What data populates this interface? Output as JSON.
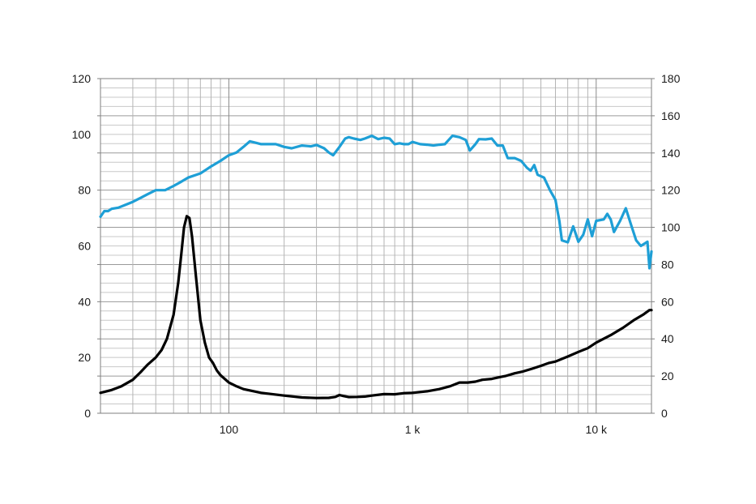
{
  "chart_data": {
    "type": "line",
    "x_scale": "log",
    "xlim": [
      20,
      20000
    ],
    "ylim_left": [
      0,
      120
    ],
    "ylim_right": [
      0,
      180
    ],
    "grid": true,
    "legend": "none",
    "x_tick_labels": [
      {
        "value": 100,
        "label": "100"
      },
      {
        "value": 1000,
        "label": "1 k"
      },
      {
        "value": 10000,
        "label": "10 k"
      }
    ],
    "y_left_ticks": [
      0,
      20,
      40,
      60,
      80,
      100,
      120
    ],
    "y_right_ticks": [
      0,
      20,
      40,
      60,
      80,
      100,
      120,
      140,
      160,
      180
    ],
    "series": [
      {
        "axis": "left",
        "color": "#1e9fd6",
        "points": [
          [
            20,
            70.5
          ],
          [
            21,
            72.5
          ],
          [
            22,
            72.5
          ],
          [
            23,
            73.3
          ],
          [
            25,
            73.7
          ],
          [
            28,
            75
          ],
          [
            30,
            75.8
          ],
          [
            33,
            77.2
          ],
          [
            36,
            78.5
          ],
          [
            40,
            80
          ],
          [
            45,
            80
          ],
          [
            50,
            81.5
          ],
          [
            55,
            83
          ],
          [
            60,
            84.5
          ],
          [
            70,
            86
          ],
          [
            80,
            88.5
          ],
          [
            90,
            90.5
          ],
          [
            100,
            92.5
          ],
          [
            110,
            93.5
          ],
          [
            120,
            95.5
          ],
          [
            130,
            97.5
          ],
          [
            140,
            97
          ],
          [
            150,
            96.5
          ],
          [
            180,
            96.5
          ],
          [
            200,
            95.5
          ],
          [
            220,
            95
          ],
          [
            250,
            96
          ],
          [
            280,
            95.7
          ],
          [
            300,
            96.2
          ],
          [
            330,
            95
          ],
          [
            350,
            93.5
          ],
          [
            370,
            92.5
          ],
          [
            400,
            95.5
          ],
          [
            430,
            98.5
          ],
          [
            450,
            99
          ],
          [
            480,
            98.5
          ],
          [
            520,
            98
          ],
          [
            550,
            98.5
          ],
          [
            600,
            99.5
          ],
          [
            650,
            98.3
          ],
          [
            700,
            98.8
          ],
          [
            750,
            98.5
          ],
          [
            800,
            96.5
          ],
          [
            850,
            96.8
          ],
          [
            900,
            96.5
          ],
          [
            950,
            96.5
          ],
          [
            1000,
            97.3
          ],
          [
            1100,
            96.5
          ],
          [
            1200,
            96.3
          ],
          [
            1300,
            96
          ],
          [
            1400,
            96.3
          ],
          [
            1500,
            96.5
          ],
          [
            1650,
            99.5
          ],
          [
            1800,
            99
          ],
          [
            1950,
            98
          ],
          [
            2050,
            94.2
          ],
          [
            2200,
            96.5
          ],
          [
            2300,
            98.3
          ],
          [
            2500,
            98.2
          ],
          [
            2700,
            98.5
          ],
          [
            2900,
            96
          ],
          [
            3100,
            96
          ],
          [
            3300,
            91.5
          ],
          [
            3600,
            91.5
          ],
          [
            3900,
            90.5
          ],
          [
            4200,
            88
          ],
          [
            4400,
            87
          ],
          [
            4600,
            89
          ],
          [
            4800,
            85.5
          ],
          [
            5200,
            84.5
          ],
          [
            5600,
            80
          ],
          [
            6000,
            76.5
          ],
          [
            6300,
            69
          ],
          [
            6500,
            62
          ],
          [
            7000,
            61.3
          ],
          [
            7500,
            67
          ],
          [
            8000,
            61.5
          ],
          [
            8500,
            64
          ],
          [
            9000,
            69.5
          ],
          [
            9500,
            63.5
          ],
          [
            10000,
            69
          ],
          [
            11000,
            69.5
          ],
          [
            11500,
            71.5
          ],
          [
            12000,
            69.5
          ],
          [
            12500,
            65
          ],
          [
            13500,
            69
          ],
          [
            14500,
            73.5
          ],
          [
            15500,
            67.5
          ],
          [
            16500,
            62
          ],
          [
            17500,
            60
          ],
          [
            18500,
            61
          ],
          [
            19000,
            61.5
          ],
          [
            19500,
            52
          ],
          [
            20000,
            58
          ]
        ]
      },
      {
        "axis": "right",
        "color": "#000000",
        "points": [
          [
            20,
            11
          ],
          [
            23,
            12.5
          ],
          [
            26,
            14.5
          ],
          [
            30,
            18
          ],
          [
            33,
            22
          ],
          [
            36,
            26
          ],
          [
            40,
            30
          ],
          [
            43,
            34
          ],
          [
            46,
            40
          ],
          [
            50,
            53
          ],
          [
            53,
            70
          ],
          [
            55,
            85
          ],
          [
            57,
            100
          ],
          [
            59,
            106
          ],
          [
            61,
            105
          ],
          [
            63,
            95
          ],
          [
            66,
            75
          ],
          [
            70,
            50
          ],
          [
            74,
            38
          ],
          [
            78,
            30
          ],
          [
            82,
            27
          ],
          [
            86,
            23
          ],
          [
            90,
            20.5
          ],
          [
            100,
            16.5
          ],
          [
            110,
            14.5
          ],
          [
            120,
            13
          ],
          [
            150,
            11
          ],
          [
            200,
            9.5
          ],
          [
            250,
            8.5
          ],
          [
            300,
            8.2
          ],
          [
            350,
            8.3
          ],
          [
            380,
            8.8
          ],
          [
            400,
            9.8
          ],
          [
            420,
            9.3
          ],
          [
            450,
            8.7
          ],
          [
            500,
            8.8
          ],
          [
            550,
            9
          ],
          [
            600,
            9.5
          ],
          [
            700,
            10.3
          ],
          [
            800,
            10.2
          ],
          [
            900,
            10.8
          ],
          [
            1000,
            11
          ],
          [
            1200,
            11.8
          ],
          [
            1400,
            13
          ],
          [
            1600,
            14.5
          ],
          [
            1800,
            16.5
          ],
          [
            2000,
            16.5
          ],
          [
            2200,
            17
          ],
          [
            2400,
            18
          ],
          [
            2700,
            18.5
          ],
          [
            3000,
            19.5
          ],
          [
            3200,
            20
          ],
          [
            3600,
            21.5
          ],
          [
            4000,
            22.5
          ],
          [
            4500,
            24
          ],
          [
            5000,
            25.5
          ],
          [
            5500,
            27
          ],
          [
            6000,
            27.8
          ],
          [
            7000,
            30.5
          ],
          [
            8000,
            33
          ],
          [
            9000,
            35
          ],
          [
            10000,
            38
          ],
          [
            12000,
            42
          ],
          [
            14000,
            46
          ],
          [
            16000,
            50
          ],
          [
            18000,
            53
          ],
          [
            19500,
            55.5
          ],
          [
            20000,
            55.5
          ]
        ]
      }
    ]
  }
}
